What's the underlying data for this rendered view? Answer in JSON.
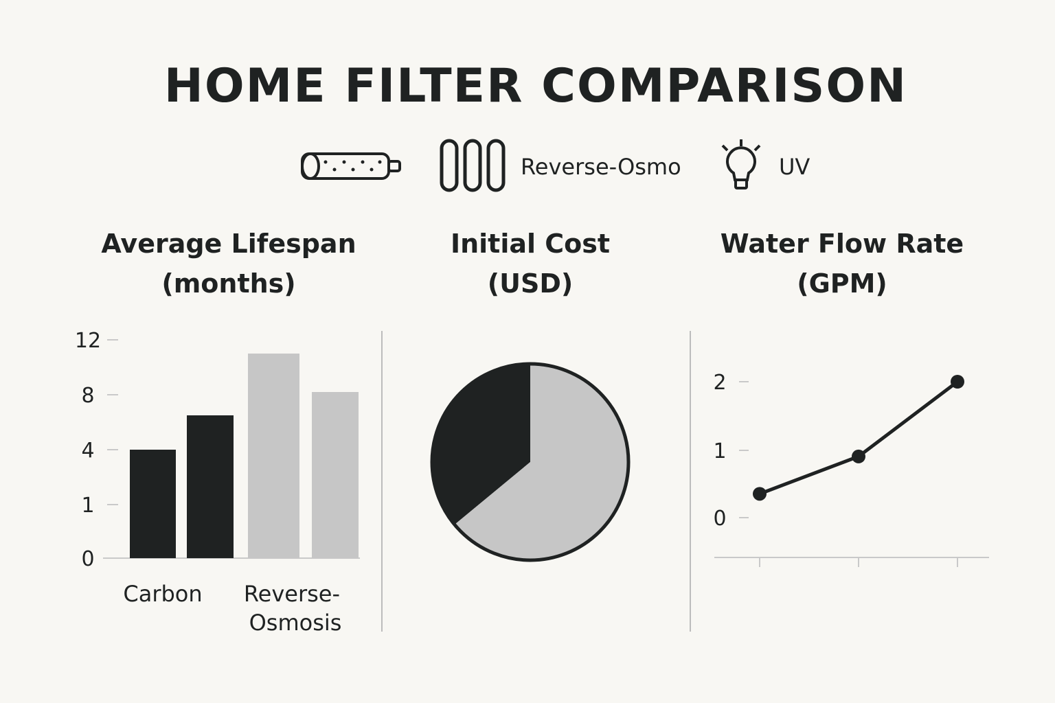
{
  "title": "HOME FILTER COMPARISON",
  "legend": [
    {
      "icon": "carbon-cartridge-icon",
      "label": ""
    },
    {
      "icon": "reverse-osmosis-tubes-icon",
      "label": "Reverse-Osmo"
    },
    {
      "icon": "uv-bulb-icon",
      "label": "UV"
    }
  ],
  "colors": {
    "dark": "#1f2222",
    "light": "#c6c6c6",
    "background": "#f8f7f3"
  },
  "chart_data": [
    {
      "type": "bar",
      "title_line1": "Average Lifespan",
      "title_line2": "(months)",
      "y_ticks": [
        "12",
        "8",
        "4",
        "1",
        "0"
      ],
      "categories": [
        "Carbon",
        "Reverse-Osmosis"
      ],
      "bars": [
        {
          "group": "Carbon",
          "value": 4,
          "color": "#1f2222"
        },
        {
          "group": "Carbon",
          "value": 6.5,
          "color": "#1f2222"
        },
        {
          "group": "Reverse-Osmosis",
          "value": 11,
          "color": "#c6c6c6"
        },
        {
          "group": "Reverse-Osmosis",
          "value": 8.2,
          "color": "#c6c6c6"
        }
      ]
    },
    {
      "type": "pie",
      "title_line1": "Initial Cost",
      "title_line2": "(USD)",
      "slices": [
        {
          "value": 36,
          "color": "#1f2222"
        },
        {
          "value": 64,
          "color": "#c6c6c6"
        }
      ]
    },
    {
      "type": "line",
      "title_line1": "Water Flow Rate",
      "title_line2": "(GPM)",
      "y_ticks": [
        "2",
        "1",
        "0"
      ],
      "y_values": [
        0.35,
        0.9,
        2.0
      ]
    }
  ]
}
